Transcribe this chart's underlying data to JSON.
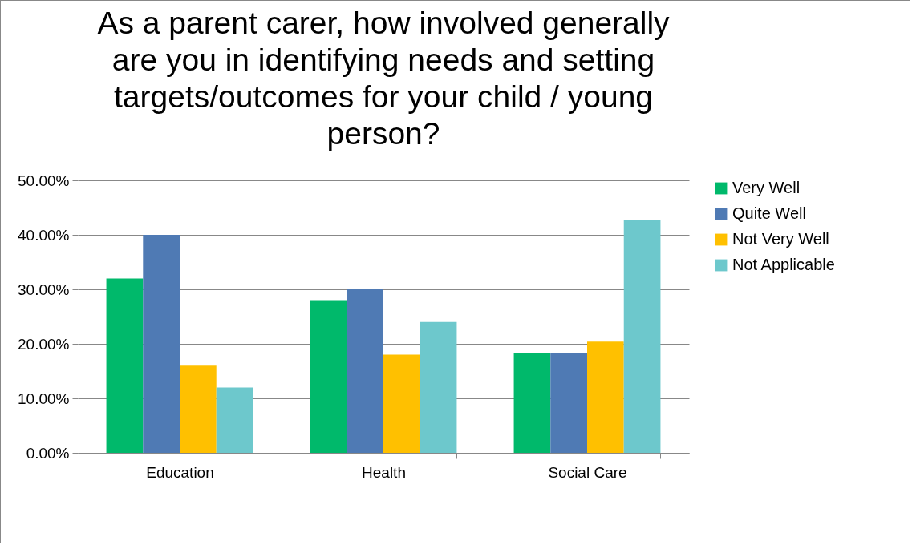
{
  "chart_data": {
    "type": "bar",
    "title": "As a parent carer, how involved generally are you in identifying needs and setting targets/outcomes for your child / young person?",
    "categories": [
      "Education",
      "Health",
      "Social Care"
    ],
    "series": [
      {
        "name": "Very Well",
        "color": "#00b96b",
        "values": [
          32,
          28,
          18.4
        ]
      },
      {
        "name": "Quite Well",
        "color": "#4f7ab4",
        "values": [
          40,
          30,
          18.4
        ]
      },
      {
        "name": "Not Very Well",
        "color": "#ffc000",
        "values": [
          16,
          18,
          20.4
        ]
      },
      {
        "name": "Not Applicable",
        "color": "#6dc8cc",
        "values": [
          12,
          24,
          42.8
        ]
      }
    ],
    "ylim": [
      0,
      50
    ],
    "yticks": [
      {
        "value": 0,
        "label": "0.00%"
      },
      {
        "value": 10,
        "label": "10.00%"
      },
      {
        "value": 20,
        "label": "20.00%"
      },
      {
        "value": 30,
        "label": "30.00%"
      },
      {
        "value": 40,
        "label": "40.00%"
      },
      {
        "value": 50,
        "label": "50.00%"
      }
    ],
    "grid": "y",
    "legend": "right"
  }
}
